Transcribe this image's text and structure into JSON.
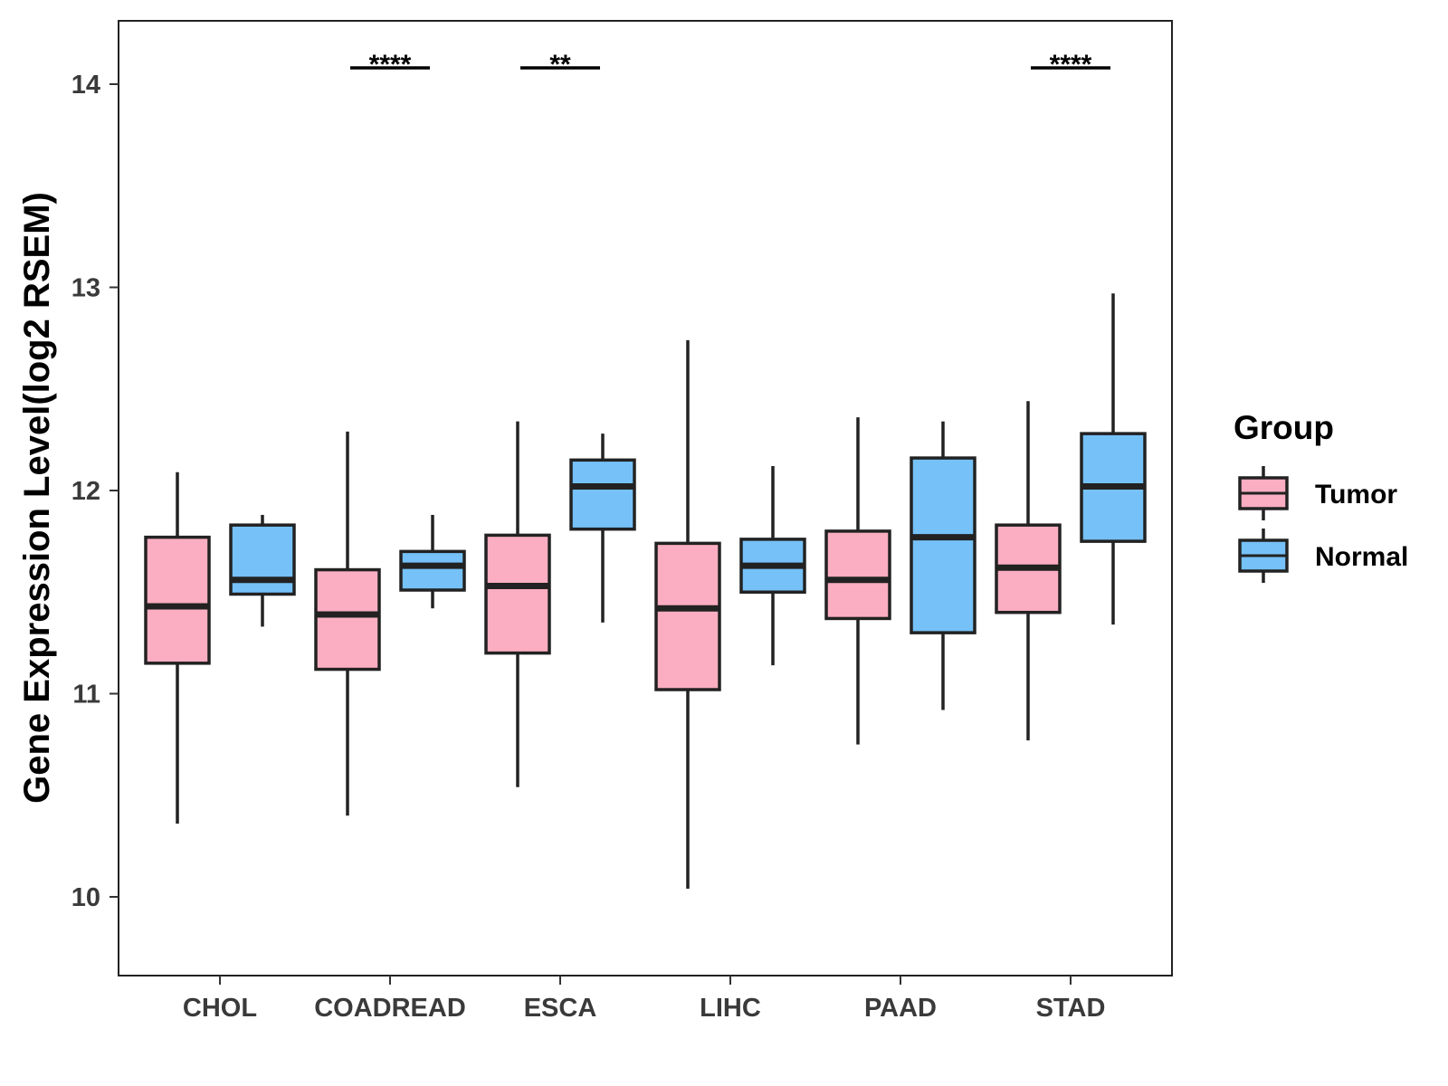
{
  "chart_data": {
    "type": "boxplot",
    "title": "",
    "xlabel": "",
    "ylabel": "Gene Expression Level(log2 RSEM)",
    "ylim": [
      9.65,
      14.35
    ],
    "yticks": [
      10,
      11,
      12,
      13,
      14
    ],
    "ytick_labels": [
      "10",
      "11",
      "12",
      "13",
      "14"
    ],
    "grid": false,
    "categories": [
      "CHOL",
      "COADREAD",
      "ESCA",
      "LIHC",
      "PAAD",
      "STAD"
    ],
    "legend": {
      "title": "Group",
      "position": "right",
      "entries": [
        {
          "name": "Tumor",
          "color": "#FBAEC1"
        },
        {
          "name": "Normal",
          "color": "#75C1F8"
        }
      ]
    },
    "series": [
      {
        "name": "Tumor",
        "color": "#FBAEC1",
        "boxes": [
          {
            "min": 10.36,
            "q1": 11.15,
            "median": 11.43,
            "q3": 11.77,
            "max": 12.09
          },
          {
            "min": 10.4,
            "q1": 11.12,
            "median": 11.39,
            "q3": 11.61,
            "max": 12.29
          },
          {
            "min": 10.54,
            "q1": 11.2,
            "median": 11.53,
            "q3": 11.78,
            "max": 12.34
          },
          {
            "min": 10.04,
            "q1": 11.02,
            "median": 11.42,
            "q3": 11.74,
            "max": 12.74
          },
          {
            "min": 10.75,
            "q1": 11.37,
            "median": 11.56,
            "q3": 11.8,
            "max": 12.36
          },
          {
            "min": 10.77,
            "q1": 11.4,
            "median": 11.62,
            "q3": 11.83,
            "max": 12.44
          }
        ]
      },
      {
        "name": "Normal",
        "color": "#75C1F8",
        "boxes": [
          {
            "min": 11.33,
            "q1": 11.49,
            "median": 11.56,
            "q3": 11.83,
            "max": 11.88
          },
          {
            "min": 11.42,
            "q1": 11.51,
            "median": 11.63,
            "q3": 11.7,
            "max": 11.88
          },
          {
            "min": 11.35,
            "q1": 11.81,
            "median": 12.02,
            "q3": 12.15,
            "max": 12.28
          },
          {
            "min": 11.14,
            "q1": 11.5,
            "median": 11.63,
            "q3": 11.76,
            "max": 12.12
          },
          {
            "min": 10.92,
            "q1": 11.3,
            "median": 11.77,
            "q3": 12.16,
            "max": 12.34
          },
          {
            "min": 11.34,
            "q1": 11.75,
            "median": 12.02,
            "q3": 12.28,
            "max": 12.97
          }
        ]
      }
    ],
    "significance": [
      {
        "category": "COADREAD",
        "label": "****",
        "y": 14.08
      },
      {
        "category": "ESCA",
        "label": "**",
        "y": 14.08
      },
      {
        "category": "STAD",
        "label": "****",
        "y": 14.08
      }
    ]
  }
}
